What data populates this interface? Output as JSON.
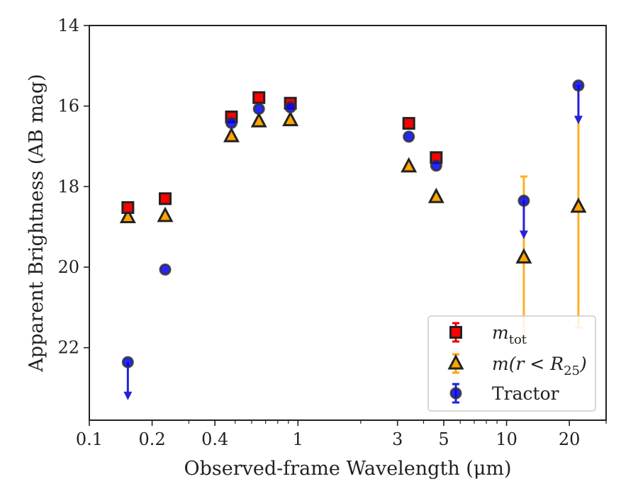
{
  "chart_data": {
    "type": "scatter",
    "title": "",
    "xlabel": "Observed-frame Wavelength (μm)",
    "ylabel": "Apparent Brightness (AB mag)",
    "xscale": "log",
    "xlim": [
      0.1,
      30
    ],
    "ylim": [
      23.8,
      14
    ],
    "y_inverted": true,
    "grid": false,
    "xticks": [
      {
        "value": 0.1,
        "label": "0.1"
      },
      {
        "value": 0.2,
        "label": "0.2"
      },
      {
        "value": 0.4,
        "label": "0.4"
      },
      {
        "value": 1,
        "label": "1"
      },
      {
        "value": 3,
        "label": "3"
      },
      {
        "value": 5,
        "label": "5"
      },
      {
        "value": 10,
        "label": "10"
      },
      {
        "value": 20,
        "label": "20"
      }
    ],
    "yticks": [
      {
        "value": 14,
        "label": "14"
      },
      {
        "value": 16,
        "label": "16"
      },
      {
        "value": 18,
        "label": "18"
      },
      {
        "value": 20,
        "label": "20"
      },
      {
        "value": 22,
        "label": "22"
      }
    ],
    "legend": {
      "position": "lower right",
      "entries": [
        {
          "series": "mtot",
          "base": "m",
          "sub": "tot",
          "rest": "",
          "italic": true
        },
        {
          "series": "mr25",
          "base": "m(r < R",
          "sub": "25",
          "rest": ")",
          "italic": true
        },
        {
          "series": "tractor",
          "base": "Tractor",
          "sub": "",
          "rest": "",
          "italic": false
        }
      ]
    },
    "series": [
      {
        "id": "mtot",
        "marker": "square",
        "color": "#ff0000",
        "edge_color": "#222222",
        "points": [
          {
            "x": 0.153,
            "y": 18.52
          },
          {
            "x": 0.231,
            "y": 18.3
          },
          {
            "x": 0.48,
            "y": 16.27
          },
          {
            "x": 0.65,
            "y": 15.79
          },
          {
            "x": 0.92,
            "y": 15.93
          },
          {
            "x": 3.4,
            "y": 16.43
          },
          {
            "x": 4.6,
            "y": 17.28
          }
        ]
      },
      {
        "id": "mr25",
        "marker": "triangle",
        "color": "#ffa500",
        "edge_color": "#222222",
        "error_color": "#ffb020",
        "points": [
          {
            "x": 0.153,
            "y": 18.76
          },
          {
            "x": 0.231,
            "y": 18.73
          },
          {
            "x": 0.48,
            "y": 16.75
          },
          {
            "x": 0.65,
            "y": 16.38
          },
          {
            "x": 0.92,
            "y": 16.35
          },
          {
            "x": 3.4,
            "y": 17.5
          },
          {
            "x": 4.6,
            "y": 18.26
          },
          {
            "x": 12.1,
            "y": 19.76,
            "err_low": 17.75,
            "err_high": 21.75
          },
          {
            "x": 22.1,
            "y": 18.5,
            "err_low": 15.5,
            "err_high": 21.5
          }
        ]
      },
      {
        "id": "tractor",
        "marker": "circle",
        "color": "#0000ff",
        "edge_color": "#333333",
        "arrow_color": "#2222dd",
        "points": [
          {
            "x": 0.153,
            "y": 22.36,
            "upper_limit": true,
            "arrow_to": 23.25
          },
          {
            "x": 0.231,
            "y": 20.06
          },
          {
            "x": 0.48,
            "y": 16.42
          },
          {
            "x": 0.65,
            "y": 16.07
          },
          {
            "x": 0.92,
            "y": 16.03
          },
          {
            "x": 3.4,
            "y": 16.76
          },
          {
            "x": 4.6,
            "y": 17.48
          },
          {
            "x": 12.1,
            "y": 18.35,
            "upper_limit": true,
            "arrow_to": 19.25
          },
          {
            "x": 22.1,
            "y": 15.49,
            "upper_limit": true,
            "arrow_to": 16.4
          }
        ]
      }
    ]
  }
}
